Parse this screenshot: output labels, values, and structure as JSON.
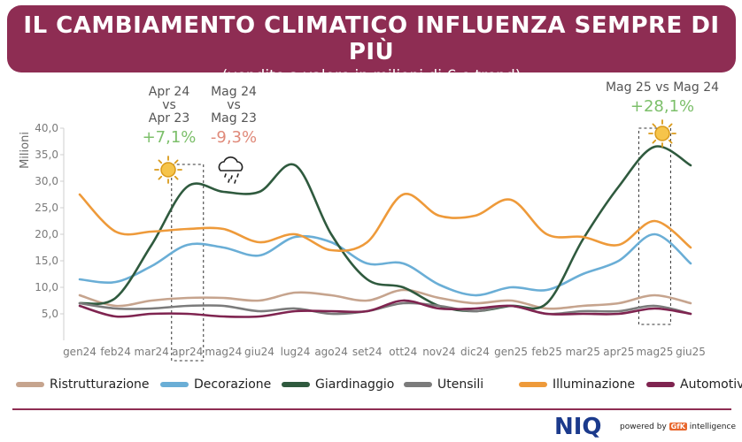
{
  "header": {
    "title": "IL CAMBIAMENTO CLIMATICO INFLUENZA SEMPRE DI PIÙ",
    "subtitle": "(vendite a valore in milioni di € e trend)"
  },
  "colors": {
    "banner": "#8e2d53",
    "Ristrutturazione": "#c6a48e",
    "Decorazione": "#6aaed6",
    "Giardinaggio": "#2f5a3e",
    "Utensili": "#7b7b7b",
    "Illuminazione": "#ee9a3a",
    "Automotive": "#7f2450",
    "positive": "#7cbf6a",
    "negative": "#e08a7a"
  },
  "chart_data": {
    "type": "line",
    "ylabel": "Milioni",
    "ylim": [
      0,
      40
    ],
    "yticks": [
      "5,0",
      "10,0",
      "15,0",
      "20,0",
      "25,0",
      "30,0",
      "35,0",
      "40,0"
    ],
    "categories": [
      "gen24",
      "feb24",
      "mar24",
      "apr24",
      "mag24",
      "giu24",
      "lug24",
      "ago24",
      "set24",
      "ott24",
      "nov24",
      "dic24",
      "gen25",
      "feb25",
      "mar25",
      "apr25",
      "mag25",
      "giu25"
    ],
    "series": [
      {
        "name": "Ristrutturazione",
        "values": [
          8.5,
          6.5,
          7.5,
          8.0,
          8.0,
          7.5,
          9.0,
          8.5,
          7.5,
          9.5,
          8.0,
          7.0,
          7.5,
          6.0,
          6.5,
          7.0,
          8.5,
          7.0
        ]
      },
      {
        "name": "Decorazione",
        "values": [
          11.5,
          11.0,
          14.0,
          18.0,
          17.5,
          16.0,
          19.5,
          18.5,
          14.5,
          14.5,
          10.5,
          8.5,
          10.0,
          9.5,
          12.5,
          15.0,
          20.0,
          14.5
        ]
      },
      {
        "name": "Giardinaggio",
        "values": [
          7.0,
          8.0,
          18.0,
          29.0,
          28.0,
          28.0,
          33.0,
          20.0,
          11.5,
          10.0,
          6.5,
          5.5,
          6.5,
          7.0,
          19.0,
          29.0,
          36.5,
          33.0
        ]
      },
      {
        "name": "Utensili",
        "values": [
          7.0,
          6.0,
          6.0,
          6.5,
          6.5,
          5.5,
          6.0,
          5.0,
          5.5,
          7.0,
          6.5,
          5.5,
          6.5,
          5.0,
          5.5,
          5.5,
          6.5,
          5.0
        ]
      },
      {
        "name": "Illuminazione",
        "values": [
          27.5,
          20.5,
          20.5,
          21.0,
          21.0,
          18.5,
          20.0,
          17.0,
          18.5,
          27.5,
          23.5,
          23.5,
          26.5,
          20.0,
          19.5,
          18.0,
          22.5,
          17.5
        ]
      },
      {
        "name": "Automotive",
        "values": [
          6.5,
          4.5,
          5.0,
          5.0,
          4.5,
          4.5,
          5.5,
          5.5,
          5.5,
          7.5,
          6.0,
          6.0,
          6.5,
          5.0,
          5.0,
          5.0,
          6.0,
          5.0
        ]
      }
    ],
    "annotations": [
      {
        "label_lines": [
          "Apr 24",
          "vs",
          "Apr 23"
        ],
        "value": "+7,1%",
        "sentiment": "positive",
        "weather": "sun"
      },
      {
        "label_lines": [
          "Mag 24",
          "vs",
          "Mag 23"
        ],
        "value": "-9,3%",
        "sentiment": "negative",
        "weather": "rain"
      },
      {
        "label_lines": [
          "Mag 25 vs Mag 24"
        ],
        "value": "+28,1%",
        "sentiment": "positive",
        "weather": "sun"
      }
    ],
    "grid": false,
    "legend": "bottom"
  },
  "footer": {
    "brand": "NIQ",
    "powered_prefix": "powered by",
    "gfk": "GfK",
    "powered_suffix": "intelligence"
  }
}
